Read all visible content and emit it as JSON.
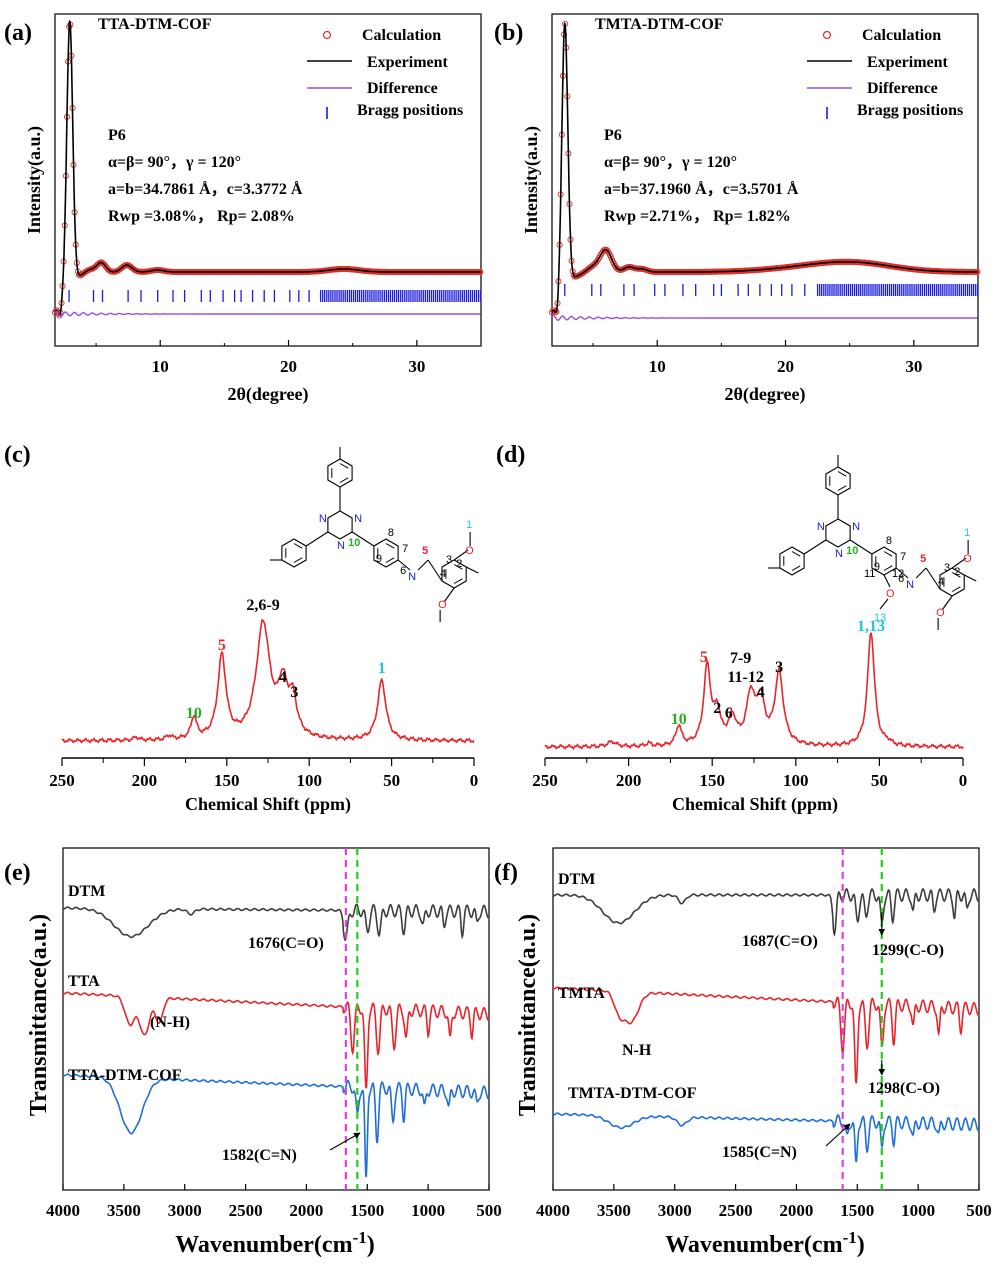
{
  "panels": {
    "a": {
      "label": "(a)",
      "title": "TTA-DTM-COF",
      "info": [
        "P6",
        "α=β= 90°，γ = 120°",
        "a=b=34.7861 Å，c=3.3772 Å",
        "Rwp =3.08%，  Rp= 2.08%"
      ]
    },
    "b": {
      "label": "(b)",
      "title": "TMTA-DTM-COF",
      "info": [
        "P6",
        "α=β= 90°，γ = 120°",
        "a=b=37.1960 Å，c=3.5701 Å",
        "Rwp =2.71%，  Rp= 1.82%"
      ]
    },
    "c": {
      "label": "(c)"
    },
    "d": {
      "label": "(d)"
    },
    "e": {
      "label": "(e)"
    },
    "f": {
      "label": "(f)"
    }
  },
  "xrd_legend": [
    "Calculation",
    "Experiment",
    "Difference",
    "Bragg positions"
  ],
  "xrd_axes": {
    "xlabel": "2θ(degree)",
    "ylabel": "Intensity(a.u.)",
    "xticks": [
      "10",
      "20",
      "30"
    ]
  },
  "nmr_axes": {
    "xlabel": "Chemical Shift (ppm)",
    "xticks": [
      "250",
      "200",
      "150",
      "100",
      "50",
      "0"
    ]
  },
  "ftir_axes": {
    "xlabel": "Wavenumber(cm",
    "xlabel_sup": "-1",
    "xlabel_close": ")",
    "ylabel": "Transmittance(a.u.)",
    "xticks": [
      "4000",
      "3500",
      "3000",
      "2500",
      "2000",
      "1500",
      "1000",
      "500"
    ]
  },
  "nmr_c_labels": {
    "p10": "10",
    "p5": "5",
    "p269": "2,6-9",
    "p4": "4",
    "p3": "3",
    "p1": "1"
  },
  "nmr_d_labels": {
    "p10": "10",
    "p5": "5",
    "p79": "7-9",
    "p1112": "11-12",
    "p2": "2",
    "p6": "6",
    "p4": "4",
    "p3": "3",
    "p113": "1,13"
  },
  "ftir_e": {
    "s1": "DTM",
    "s2": "TTA",
    "s3": "TTA-DTM-COF",
    "a1": "1676(C=O)",
    "a2": "(N-H)",
    "a3": "1582(C=N)"
  },
  "ftir_f": {
    "s1": "DTM",
    "s2": "TMTA",
    "s3": "TMTA-DTM-COF",
    "a1": "1687(C=O)",
    "a2": "1299(C-O)",
    "a3": "N-H",
    "a4": "1298(C-O)",
    "a5": "1585(C=N)"
  },
  "chem_c": {
    "n": "N",
    "o": "O",
    "n1": "1",
    "n2": "2",
    "n3": "3",
    "n4": "4",
    "n5": "5",
    "n6": "6",
    "n7": "7",
    "n8": "8",
    "n9": "9",
    "n10": "10"
  },
  "chem_d": {
    "n": "N",
    "o": "O",
    "n1": "1",
    "n2": "2",
    "n3": "3",
    "n4": "4",
    "n5": "5",
    "n6": "6",
    "n7": "7",
    "n8": "8",
    "n9": "9",
    "n10": "10",
    "n11": "11",
    "n12": "12",
    "n13": "13"
  },
  "colors": {
    "calc": "#e0302a",
    "exp": "#000000",
    "diff": "#9b4fe0",
    "bragg": "#1a1adc",
    "nmr": "#e8242a",
    "ftir_dtm": "#3d3d3d",
    "ftir_red": "#e8242a",
    "ftir_blue": "#1e6fd9",
    "magenta": "#e040e0",
    "green": "#22cc22",
    "num_red": "#e8242a",
    "num_green": "#22b022",
    "num_cyan": "#22c4d8"
  },
  "chart_data": [
    {
      "panel": "a",
      "type": "line",
      "title": "TTA-DTM-COF",
      "xlabel": "2θ(degree)",
      "ylabel": "Intensity(a.u.)",
      "xlim": [
        1.8,
        35
      ],
      "series": [
        {
          "name": "Calculation"
        },
        {
          "name": "Experiment"
        },
        {
          "name": "Difference"
        },
        {
          "name": "Bragg positions"
        }
      ],
      "peaks_2theta": [
        2.9,
        5.1,
        5.8,
        7.5,
        9.8,
        24.3
      ]
    },
    {
      "panel": "b",
      "type": "line",
      "title": "TMTA-DTM-COF",
      "xlabel": "2θ(degree)",
      "ylabel": "Intensity(a.u.)",
      "xlim": [
        1.8,
        35
      ],
      "series": [
        {
          "name": "Calculation"
        },
        {
          "name": "Experiment"
        },
        {
          "name": "Difference"
        },
        {
          "name": "Bragg positions"
        }
      ],
      "peaks_2theta": [
        2.8,
        5.2,
        5.9,
        7.8,
        8.6,
        25.3
      ]
    },
    {
      "panel": "c",
      "type": "line",
      "xlabel": "Chemical Shift (ppm)",
      "xlim": [
        250,
        0
      ],
      "peaks_ppm": [
        {
          "ppm": 170,
          "label": "10"
        },
        {
          "ppm": 153,
          "label": "5"
        },
        {
          "ppm": 128,
          "label": "2,6-9"
        },
        {
          "ppm": 116,
          "label": "4"
        },
        {
          "ppm": 110,
          "label": "3"
        },
        {
          "ppm": 56,
          "label": "1"
        }
      ]
    },
    {
      "panel": "d",
      "type": "line",
      "xlabel": "Chemical Shift (ppm)",
      "xlim": [
        250,
        0
      ],
      "peaks_ppm": [
        {
          "ppm": 170,
          "label": "10"
        },
        {
          "ppm": 153,
          "label": "5"
        },
        {
          "ppm": 148,
          "label": "2"
        },
        {
          "ppm": 140,
          "label": "6"
        },
        {
          "ppm": 128,
          "label": "7-9"
        },
        {
          "ppm": 122,
          "label": "4"
        },
        {
          "ppm": 110,
          "label": "3"
        },
        {
          "ppm": 55,
          "label": "1,13"
        }
      ]
    },
    {
      "panel": "e",
      "type": "line",
      "xlabel": "Wavenumber(cm-1)",
      "ylabel": "Transmittance(a.u.)",
      "xlim": [
        4000,
        500
      ],
      "series": [
        {
          "name": "DTM"
        },
        {
          "name": "TTA"
        },
        {
          "name": "TTA-DTM-COF"
        }
      ],
      "markers_cm1": [
        1676,
        1582
      ]
    },
    {
      "panel": "f",
      "type": "line",
      "xlabel": "Wavenumber(cm-1)",
      "ylabel": "Transmittance(a.u.)",
      "xlim": [
        4000,
        500
      ],
      "series": [
        {
          "name": "DTM"
        },
        {
          "name": "TMTA"
        },
        {
          "name": "TMTA-DTM-COF"
        }
      ],
      "markers_cm1": [
        1585,
        1299
      ]
    }
  ]
}
